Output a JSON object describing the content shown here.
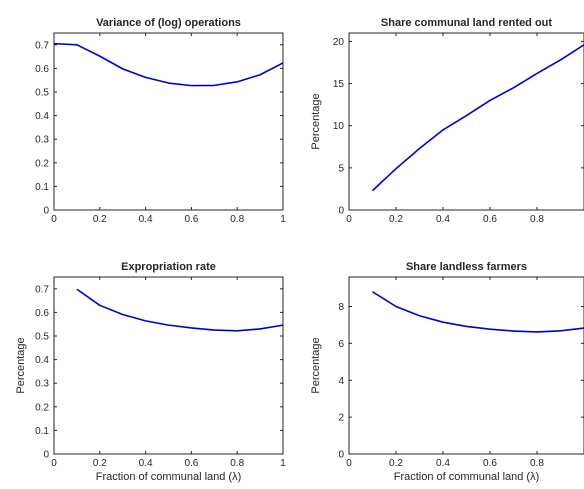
{
  "chart_data": [
    {
      "type": "line",
      "title": "Variance of (log) operations",
      "xlabel": "",
      "ylabel": "",
      "xlim": [
        0,
        1
      ],
      "ylim": [
        0,
        0.75
      ],
      "xticks": [
        0,
        0.2,
        0.4,
        0.6,
        0.8,
        1
      ],
      "xtick_labels": [
        "0",
        "0.2",
        "0.4",
        "0.6",
        "0.8",
        "1"
      ],
      "yticks": [
        0,
        0.1,
        0.2,
        0.3,
        0.4,
        0.5,
        0.6,
        0.7
      ],
      "ytick_labels": [
        "0",
        "0.1",
        "0.2",
        "0.3",
        "0.4",
        "0.5",
        "0.6",
        "0.7"
      ],
      "color": "#0000cc",
      "grid": false,
      "x": [
        0,
        0.1,
        0.2,
        0.3,
        0.4,
        0.5,
        0.6,
        0.7,
        0.8,
        0.9,
        1.0
      ],
      "y": [
        0.705,
        0.7,
        0.652,
        0.598,
        0.562,
        0.538,
        0.527,
        0.528,
        0.543,
        0.573,
        0.623
      ]
    },
    {
      "type": "line",
      "title": "Share communal land rented out",
      "xlabel": "",
      "ylabel": "Percentage",
      "xlim": [
        0,
        1
      ],
      "ylim": [
        0,
        21
      ],
      "xticks": [
        0,
        0.2,
        0.4,
        0.6,
        0.8
      ],
      "xtick_labels": [
        "0",
        "0.2",
        "0.4",
        "0.6",
        "0.8"
      ],
      "yticks": [
        0,
        5,
        10,
        15,
        20
      ],
      "ytick_labels": [
        "0",
        "5",
        "10",
        "15",
        "20"
      ],
      "color": "#0000cc",
      "grid": false,
      "x": [
        0.1,
        0.2,
        0.3,
        0.4,
        0.5,
        0.6,
        0.7,
        0.8,
        0.9,
        1.0
      ],
      "y": [
        2.3,
        4.9,
        7.3,
        9.5,
        11.2,
        13.0,
        14.5,
        16.2,
        17.8,
        19.6
      ]
    },
    {
      "type": "line",
      "title": "Expropriation rate",
      "xlabel": "Fraction of communal land (λ)",
      "ylabel": "Percentage",
      "xlim": [
        0,
        1
      ],
      "ylim": [
        0,
        0.75
      ],
      "xticks": [
        0,
        0.2,
        0.4,
        0.6,
        0.8,
        1
      ],
      "xtick_labels": [
        "0",
        "0.2",
        "0.4",
        "0.6",
        "0.8",
        "1"
      ],
      "yticks": [
        0,
        0.1,
        0.2,
        0.3,
        0.4,
        0.5,
        0.6,
        0.7
      ],
      "ytick_labels": [
        "0",
        "0.1",
        "0.2",
        "0.3",
        "0.4",
        "0.5",
        "0.6",
        "0.7"
      ],
      "color": "#0000cc",
      "grid": false,
      "x": [
        0.1,
        0.2,
        0.3,
        0.4,
        0.5,
        0.6,
        0.7,
        0.8,
        0.9,
        1.0
      ],
      "y": [
        0.698,
        0.63,
        0.591,
        0.564,
        0.546,
        0.534,
        0.525,
        0.522,
        0.53,
        0.546
      ]
    },
    {
      "type": "line",
      "title": "Share landless farmers",
      "xlabel": "Fraction of communal land (λ)",
      "ylabel": "Percentage",
      "xlim": [
        0,
        1
      ],
      "ylim": [
        0,
        9.6
      ],
      "xticks": [
        0,
        0.2,
        0.4,
        0.6,
        0.8
      ],
      "xtick_labels": [
        "0",
        "0.2",
        "0.4",
        "0.6",
        "0.8"
      ],
      "yticks": [
        0,
        2,
        4,
        6,
        8
      ],
      "ytick_labels": [
        "0",
        "2",
        "4",
        "6",
        "8"
      ],
      "color": "#0000cc",
      "grid": false,
      "x": [
        0.1,
        0.2,
        0.3,
        0.4,
        0.5,
        0.6,
        0.7,
        0.8,
        0.9,
        1.0
      ],
      "y": [
        8.8,
        8.0,
        7.5,
        7.15,
        6.92,
        6.77,
        6.67,
        6.62,
        6.68,
        6.83
      ]
    }
  ]
}
